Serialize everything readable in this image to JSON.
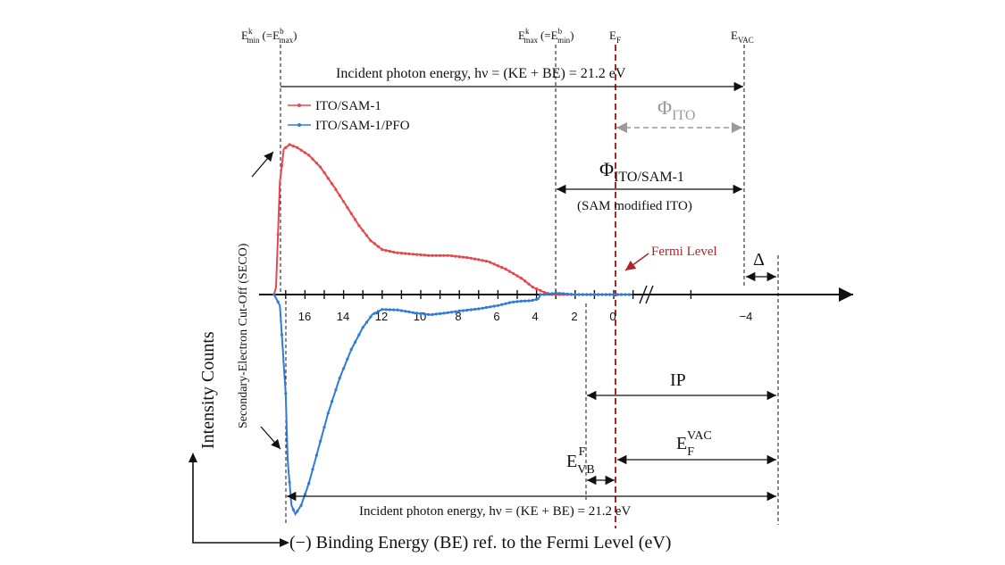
{
  "colors": {
    "red_series": "#e8474c",
    "blue_series": "#2f7bd9",
    "fermi_line": "#b3242a",
    "phi_ito": "#9a9a9a",
    "text": "#111111"
  },
  "top_labels": {
    "emin_k": "E",
    "emin_k_sup": "k",
    "emin_k_sub": "min",
    "emin_eq": "(=E",
    "emin_eq_sup": "b",
    "emin_eq_sub": "max",
    "emin_close": ")",
    "emax_k": "E",
    "emax_k_sup": "k",
    "emax_k_sub": "max",
    "emax_eq": "(=E",
    "emax_eq_sup": "b",
    "emax_eq_sub": "min",
    "emax_close": ")",
    "ef": "E",
    "ef_sub": "F",
    "evac": "E",
    "evac_sub": "VAC"
  },
  "top_photon_text": "Incident photon energy, hν = (KE + BE) = 21.2 eV",
  "bottom_photon_text": "Incident photon energy, hν = (KE + BE) = 21.2 eV",
  "legend": [
    {
      "label": "ITO/SAM-1"
    },
    {
      "label": "ITO/SAM-1/PFO"
    }
  ],
  "phi_ito": {
    "symbol": "Φ",
    "sub": "ITO"
  },
  "phi_ito_sam": {
    "symbol": "Φ",
    "sub": "ITO/SAM-1",
    "caption": "(SAM modified ITO)"
  },
  "fermi_level_label": "Fermi Level",
  "delta_label": "Δ",
  "ip_label": "IP",
  "ef_vac": {
    "main": "E",
    "sub": "F",
    "sup": "VAC"
  },
  "e_vb": {
    "main": "E",
    "sub": "VB",
    "sup": "F"
  },
  "seco_label": "Secondary-Electron Cut-Off (SECO)",
  "y_axis_label": "Intensity Counts",
  "x_axis_label": "(−) Binding Energy (BE) ref. to the Fermi Level (eV)",
  "tick_labels": [
    "16",
    "14",
    "12",
    "10",
    "8",
    "6",
    "4",
    "2",
    "0",
    "−4"
  ],
  "chart_data": {
    "type": "line",
    "xlabel": "(−) Binding Energy (BE) ref. to the Fermi Level (eV)",
    "ylabel": "Intensity Counts",
    "x_direction": "reversed",
    "series": [
      {
        "name": "ITO/SAM-1",
        "points": [
          [
            17.6,
            0.0
          ],
          [
            17.5,
            0.05
          ],
          [
            17.3,
            0.75
          ],
          [
            17.1,
            0.97
          ],
          [
            16.8,
            1.0
          ],
          [
            16.4,
            0.98
          ],
          [
            15.8,
            0.93
          ],
          [
            15.2,
            0.85
          ],
          [
            14.5,
            0.72
          ],
          [
            13.8,
            0.58
          ],
          [
            13.2,
            0.46
          ],
          [
            12.6,
            0.36
          ],
          [
            12.0,
            0.3
          ],
          [
            11.3,
            0.28
          ],
          [
            10.5,
            0.27
          ],
          [
            9.5,
            0.26
          ],
          [
            8.5,
            0.26
          ],
          [
            7.5,
            0.245
          ],
          [
            6.5,
            0.22
          ],
          [
            5.6,
            0.17
          ],
          [
            4.8,
            0.11
          ],
          [
            4.2,
            0.05
          ],
          [
            3.6,
            0.015
          ],
          [
            3.2,
            0.0
          ],
          [
            2.5,
            0.0
          ],
          [
            1.5,
            0.0
          ],
          [
            0.0,
            0.0
          ],
          [
            -0.6,
            0.0
          ]
        ]
      },
      {
        "name": "ITO/SAM-1/PFO",
        "points": [
          [
            17.6,
            0.0
          ],
          [
            17.3,
            -0.05
          ],
          [
            17.0,
            -0.45
          ],
          [
            16.9,
            -0.75
          ],
          [
            16.7,
            -0.96
          ],
          [
            16.5,
            -1.0
          ],
          [
            16.2,
            -0.96
          ],
          [
            15.8,
            -0.86
          ],
          [
            15.3,
            -0.7
          ],
          [
            14.8,
            -0.54
          ],
          [
            14.2,
            -0.38
          ],
          [
            13.6,
            -0.25
          ],
          [
            13.0,
            -0.15
          ],
          [
            12.5,
            -0.09
          ],
          [
            12.0,
            -0.068
          ],
          [
            11.2,
            -0.07
          ],
          [
            10.2,
            -0.085
          ],
          [
            9.5,
            -0.092
          ],
          [
            8.8,
            -0.085
          ],
          [
            8.0,
            -0.075
          ],
          [
            7.0,
            -0.065
          ],
          [
            6.0,
            -0.05
          ],
          [
            5.3,
            -0.035
          ],
          [
            4.8,
            -0.03
          ],
          [
            4.3,
            -0.028
          ],
          [
            3.9,
            -0.02
          ],
          [
            3.8,
            0.0
          ],
          [
            3.5,
            0.0
          ],
          [
            3.0,
            0.01
          ],
          [
            2.0,
            0.0
          ],
          [
            0.0,
            0.0
          ],
          [
            -1.0,
            0.0
          ]
        ]
      }
    ]
  }
}
